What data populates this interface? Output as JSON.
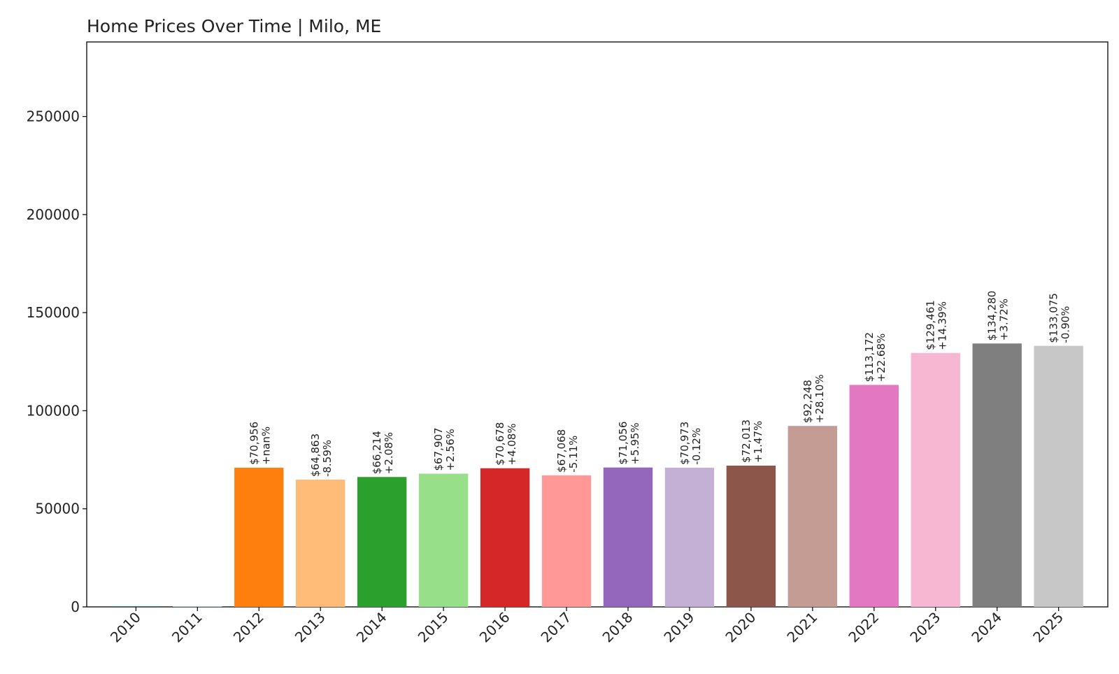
{
  "chart_data": {
    "type": "bar",
    "title": "Home Prices Over Time | Milo, ME",
    "xlabel": "",
    "ylabel": "",
    "ylim": [
      0,
      288000
    ],
    "yticks": [
      0,
      50000,
      100000,
      150000,
      200000,
      250000
    ],
    "grid": false,
    "categories": [
      "2010",
      "2011",
      "2012",
      "2013",
      "2014",
      "2015",
      "2016",
      "2017",
      "2018",
      "2019",
      "2020",
      "2021",
      "2022",
      "2023",
      "2024",
      "2025"
    ],
    "values": [
      0,
      0,
      70956,
      64863,
      66214,
      67907,
      70678,
      67068,
      71056,
      70973,
      72013,
      92248,
      113172,
      129461,
      134280,
      133075
    ],
    "price_labels": [
      "",
      "",
      "$70,956",
      "$64,863",
      "$66,214",
      "$67,907",
      "$70,678",
      "$67,068",
      "$71,056",
      "$70,973",
      "$72,013",
      "$92,248",
      "$113,172",
      "$129,461",
      "$134,280",
      "$133,075"
    ],
    "change_labels": [
      "",
      "",
      "+nan%",
      "-8.59%",
      "+2.08%",
      "+2.56%",
      "+4.08%",
      "-5.11%",
      "+5.95%",
      "-0.12%",
      "+1.47%",
      "+28.10%",
      "+22.68%",
      "+14.39%",
      "+3.72%",
      "-0.90%"
    ],
    "colors": [
      "#1f77b4",
      "#aec7e8",
      "#ff7f0e",
      "#ffbb78",
      "#2ca02c",
      "#98df8a",
      "#d62728",
      "#ff9896",
      "#9467bd",
      "#c5b0d5",
      "#8c564b",
      "#c49c94",
      "#e377c2",
      "#f7b6d2",
      "#7f7f7f",
      "#c7c7c7"
    ]
  }
}
